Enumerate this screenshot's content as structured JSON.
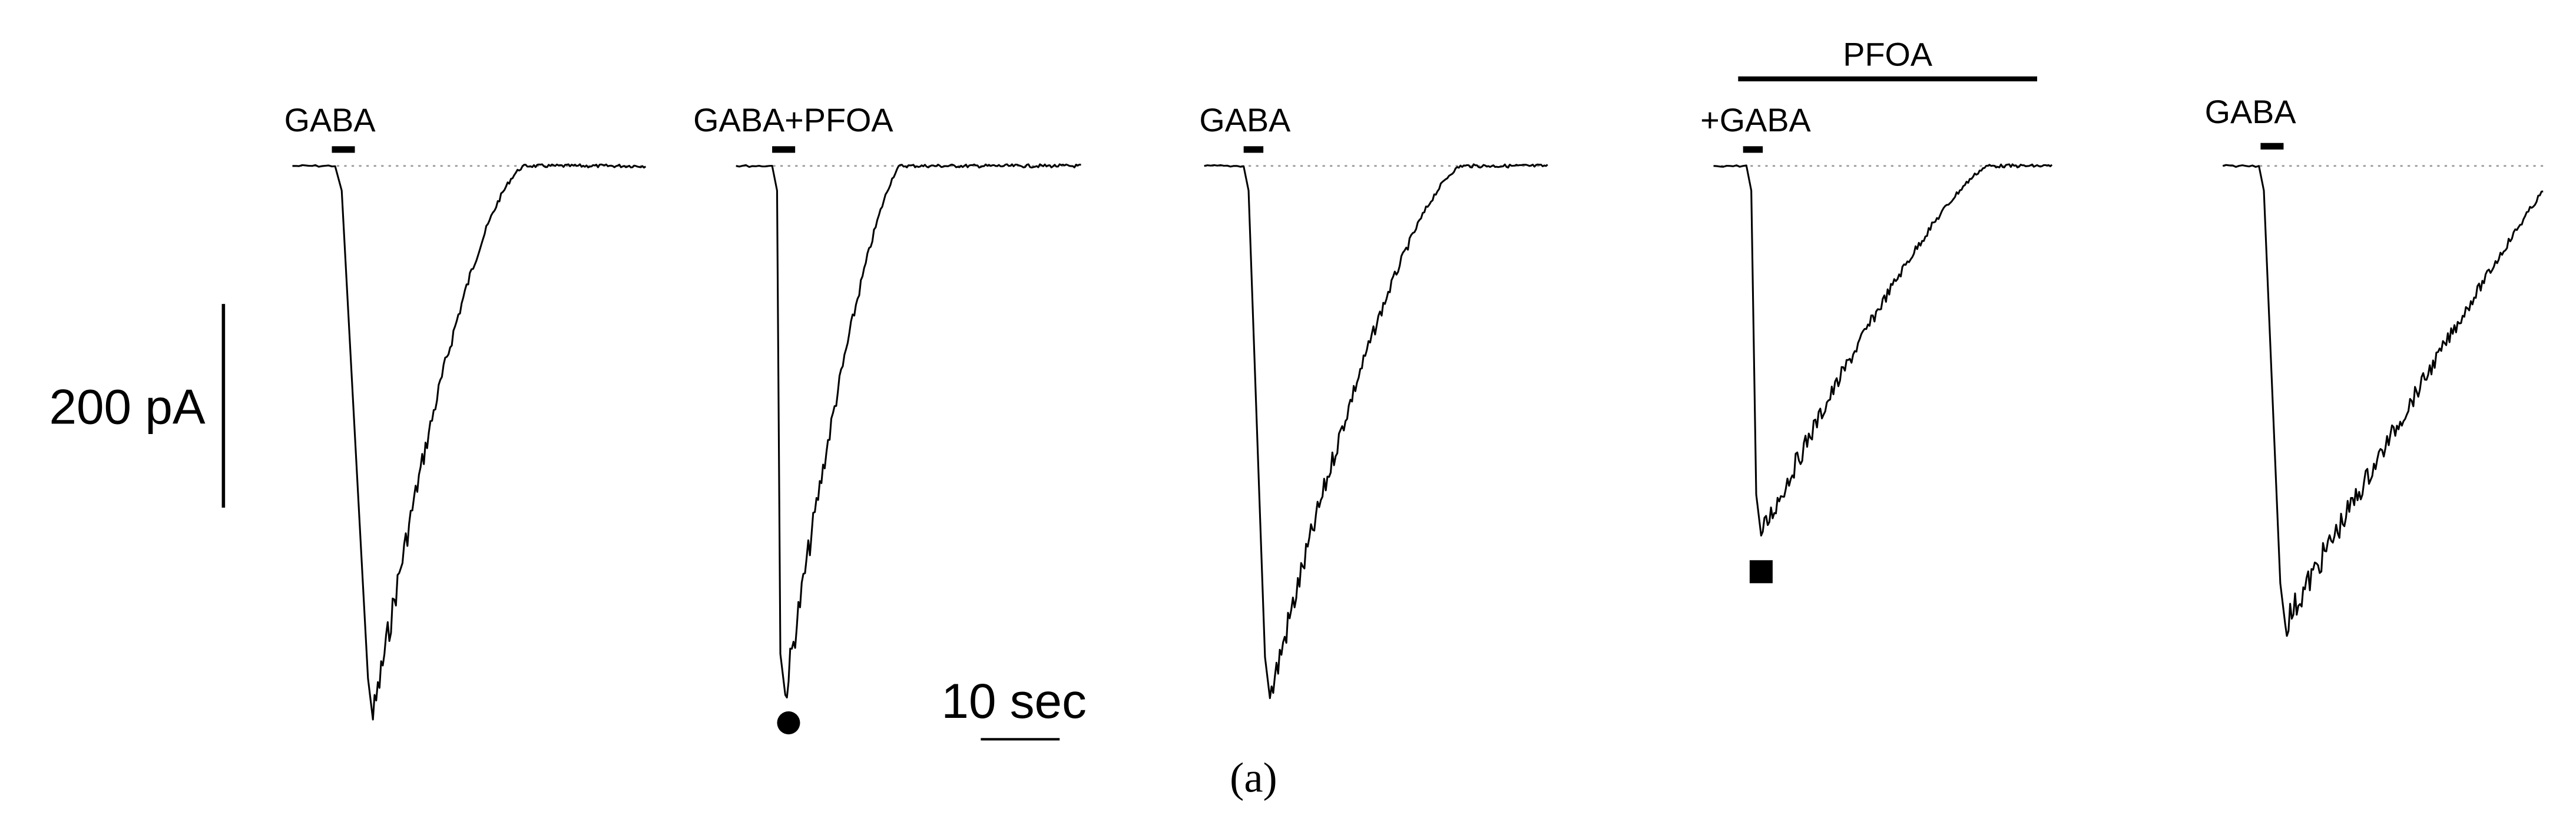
{
  "traces": [
    {
      "label": "GABA"
    },
    {
      "label": "GABA+PFOA"
    },
    {
      "label": "GABA"
    },
    {
      "label": "+GABA",
      "bar_label": "PFOA"
    },
    {
      "label": "GABA"
    }
  ],
  "scale_bar": {
    "current": "200 pA",
    "time": "10 sec"
  },
  "caption": "(a)"
}
